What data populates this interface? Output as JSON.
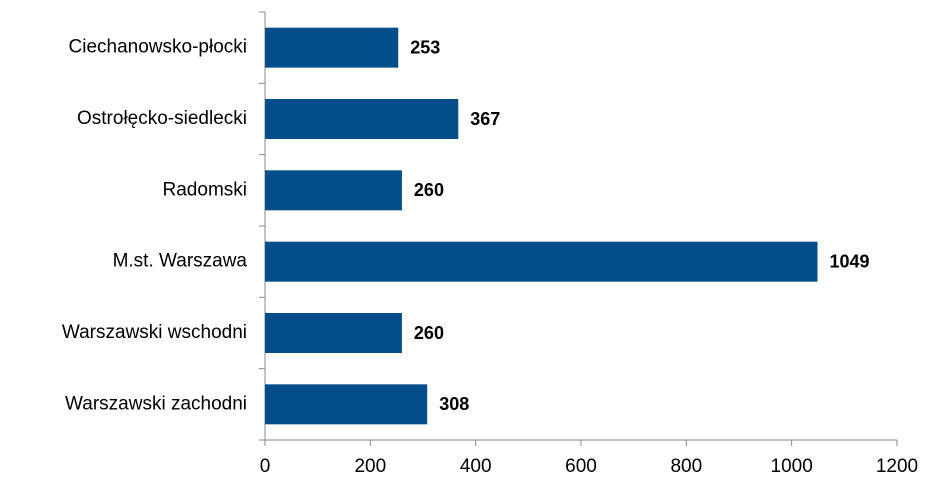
{
  "chart_data": {
    "type": "bar",
    "orientation": "horizontal",
    "categories": [
      "Ciechanowsko-płocki",
      "Ostrołęcko-siedlecki",
      "Radomski",
      "M.st. Warszawa",
      "Warszawski wschodni",
      "Warszawski zachodni"
    ],
    "values": [
      253,
      367,
      260,
      1049,
      260,
      308
    ],
    "color": "#034e8a",
    "xlim": [
      0,
      1200
    ],
    "xticks": [
      0,
      200,
      400,
      600,
      800,
      1000,
      1200
    ],
    "grid": false
  }
}
